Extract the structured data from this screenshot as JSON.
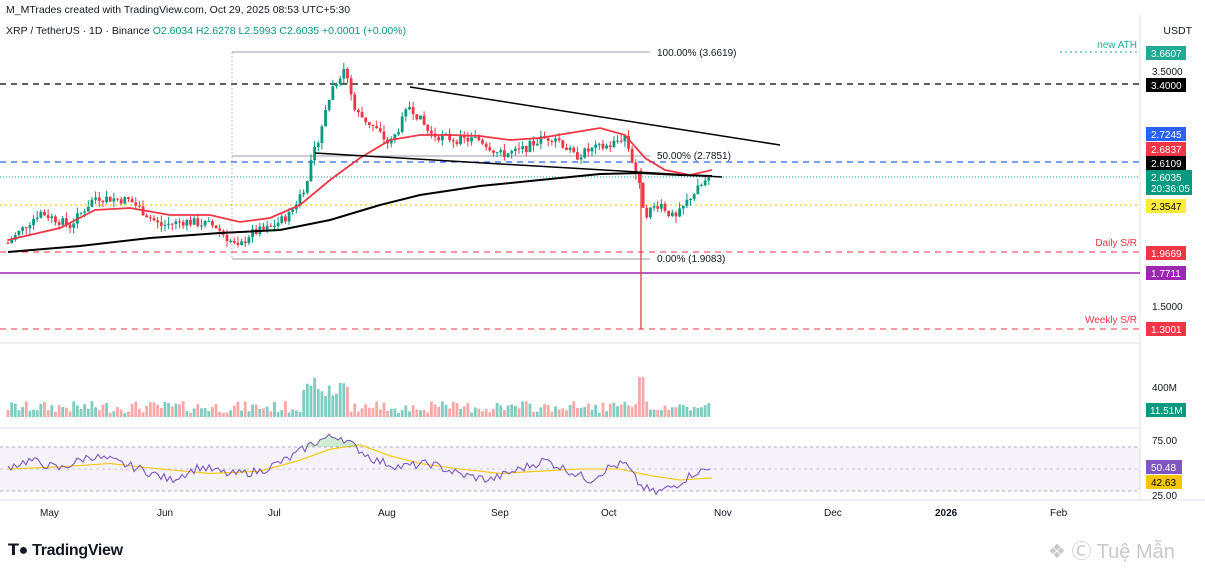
{
  "header": {
    "created_by": "M_MTrades created with TradingView.com, Oct 29, 2025 08:53 UTC+5:30"
  },
  "symbol_info": {
    "symbol": "XRP / TetherUS · 1D · Binance",
    "open": "O2.6034",
    "high": "H2.6278",
    "low": "L2.5993",
    "close": "C2.6035",
    "change": "+0.0001 (+0.00%)"
  },
  "currency": "USDT",
  "logo_text": "TradingView",
  "watermark": "Tuệ Mẫn",
  "colors": {
    "up": "#089981",
    "down": "#f23645",
    "ema_red": "#f23645",
    "ema_black": "#000000",
    "rsi": "#7e57c2",
    "rsi_ma": "#f7c600",
    "blue_line": "#2962ff",
    "purple_line": "#9c27b0"
  },
  "price_axis": {
    "ticks": [
      "3.5000",
      "1.5000"
    ],
    "labels": [
      {
        "text": "3.6607",
        "price": 3.6607,
        "color": "#22ab94",
        "note": "new ATH"
      },
      {
        "text": "3.4000",
        "price": 3.4,
        "color": "#000000"
      },
      {
        "text": "2.7245",
        "price": 2.7245,
        "color": "#2962ff"
      },
      {
        "text": "2.6837",
        "price": 2.6837,
        "color": "#f23645"
      },
      {
        "text": "2.6109",
        "price": 2.6109,
        "color": "#000000"
      },
      {
        "text": "2.6035",
        "price": 2.6035,
        "color": "#089981",
        "sub": "20:36:05"
      },
      {
        "text": "2.3547",
        "price": 2.3547,
        "color": "#ffeb3b",
        "textcolor": "#000000"
      },
      {
        "text": "1.9669",
        "price": 1.9669,
        "color": "#f23645",
        "note": "Daily S/R"
      },
      {
        "text": "1.7711",
        "price": 1.7711,
        "color": "#9c27b0"
      },
      {
        "text": "1.3001",
        "price": 1.3001,
        "color": "#f23645",
        "note": "Weekly S/R"
      }
    ]
  },
  "fib": {
    "top": "100.00% (3.6619)",
    "mid": "50.00% (2.7851)",
    "bottom": "0.00% (1.9083)"
  },
  "volume_axis": {
    "tick": "400M",
    "label": "11.51M"
  },
  "rsi_axis": {
    "ticks": [
      "75.00",
      "25.00"
    ],
    "rsi_label": "50.48",
    "ma_label": "42.63"
  },
  "time_axis": [
    "May",
    "Jun",
    "Jul",
    "Aug",
    "Sep",
    "Oct",
    "Nov",
    "Dec",
    "2026",
    "Feb"
  ],
  "chart_data": {
    "type": "candlestick",
    "symbol": "XRP/USDT",
    "interval": "1D",
    "exchange": "Binance",
    "last_close": 2.6035,
    "ath": 3.6619,
    "approx_monthly_closes": [
      {
        "month": "May",
        "close": 2.35
      },
      {
        "month": "Jun",
        "close": 2.18
      },
      {
        "month": "Jul",
        "close": 2.65
      },
      {
        "month": "Aug",
        "close": 2.98
      },
      {
        "month": "Sep",
        "close": 2.85
      },
      {
        "month": "Oct",
        "close": 2.6
      }
    ],
    "horizontal_levels": [
      3.4,
      2.7245,
      2.6109,
      2.3547,
      1.9669,
      1.7711,
      1.3001
    ],
    "rsi_value": 50.48,
    "rsi_ma_value": 42.63,
    "rsi_bands": [
      70,
      30
    ],
    "volume_last": "11.51M"
  }
}
